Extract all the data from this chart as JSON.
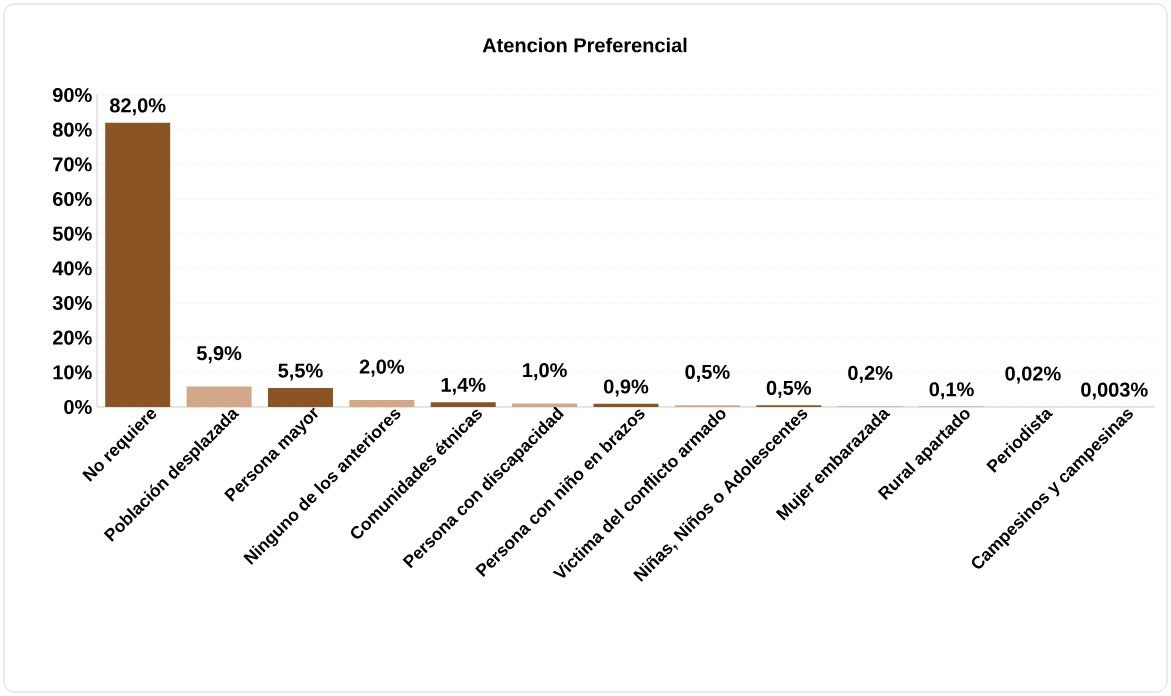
{
  "chart_data": {
    "type": "bar",
    "title": "Atencion Preferencial",
    "categories": [
      "No requiere",
      "Población desplazada",
      "Persona mayor",
      "Ninguno de los anteriores",
      "Comunidades étnicas",
      "Persona con discapacidad",
      "Persona con niño en brazos",
      "Victima del conflicto armado",
      "Niñas, Niños o Adolescentes",
      "Mujer embarazada",
      "Rural apartado",
      "Periodista",
      "Campesinos y campesinas"
    ],
    "values": [
      82.0,
      5.9,
      5.5,
      2.0,
      1.4,
      1.0,
      0.9,
      0.5,
      0.5,
      0.2,
      0.1,
      0.02,
      0.003
    ],
    "value_labels": [
      "82,0%",
      "5,9%",
      "5,5%",
      "2,0%",
      "1,4%",
      "1,0%",
      "0,9%",
      "0,5%",
      "0,5%",
      "0,2%",
      "0,1%",
      "0,02%",
      "0,003%"
    ],
    "colors": [
      "#8a5424",
      "#d2a888",
      "#8a5424",
      "#d2a888",
      "#8a5424",
      "#d2a888",
      "#8a5424",
      "#d2a888",
      "#8a5424",
      "#d2a888",
      "#8a5424",
      "#d2a888",
      "#b08860"
    ],
    "ylim": [
      0,
      90
    ],
    "yticks": [
      {
        "value": 0,
        "label": "0%"
      },
      {
        "value": 10,
        "label": "10%"
      },
      {
        "value": 20,
        "label": "20%"
      },
      {
        "value": 30,
        "label": "30%"
      },
      {
        "value": 40,
        "label": "40%"
      },
      {
        "value": 50,
        "label": "50%"
      },
      {
        "value": 60,
        "label": "60%"
      },
      {
        "value": 70,
        "label": "70%"
      },
      {
        "value": 80,
        "label": "80%"
      },
      {
        "value": 90,
        "label": "90%"
      }
    ],
    "grid": "y"
  }
}
